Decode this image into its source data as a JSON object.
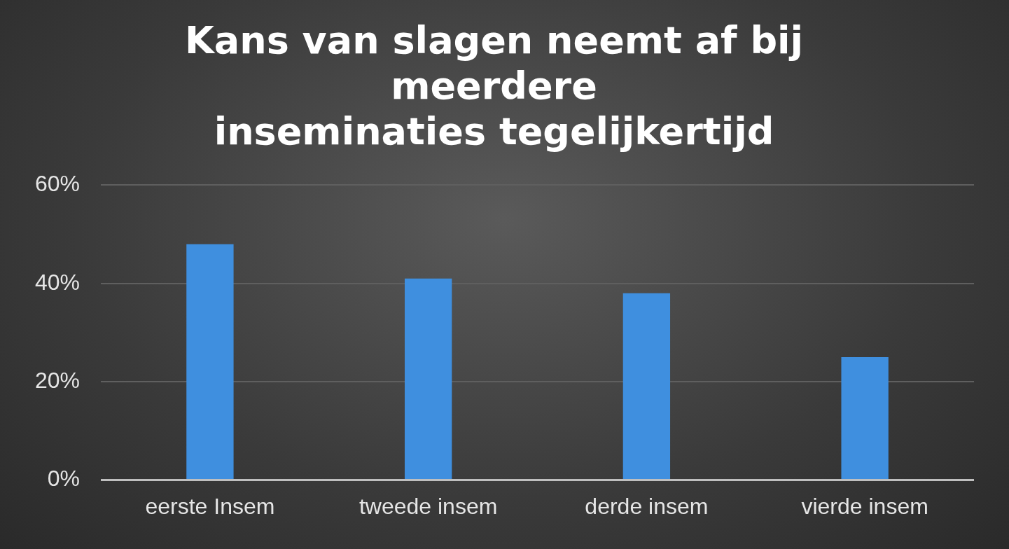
{
  "chart_data": {
    "type": "bar",
    "title": "Kans van slagen neemt af bij\nmeerdere\ninseminaties tegelijkertijd",
    "categories": [
      "eerste Insem",
      "tweede insem",
      "derde insem",
      "vierde insem"
    ],
    "values": [
      48,
      41,
      38,
      25
    ],
    "color": "#3f8fdf",
    "ylim": [
      0,
      60
    ],
    "yticks": [
      {
        "value": 0,
        "label": "0%"
      },
      {
        "value": 20,
        "label": "20%"
      },
      {
        "value": 40,
        "label": "40%"
      },
      {
        "value": 60,
        "label": "60%"
      }
    ],
    "grid": "y"
  }
}
